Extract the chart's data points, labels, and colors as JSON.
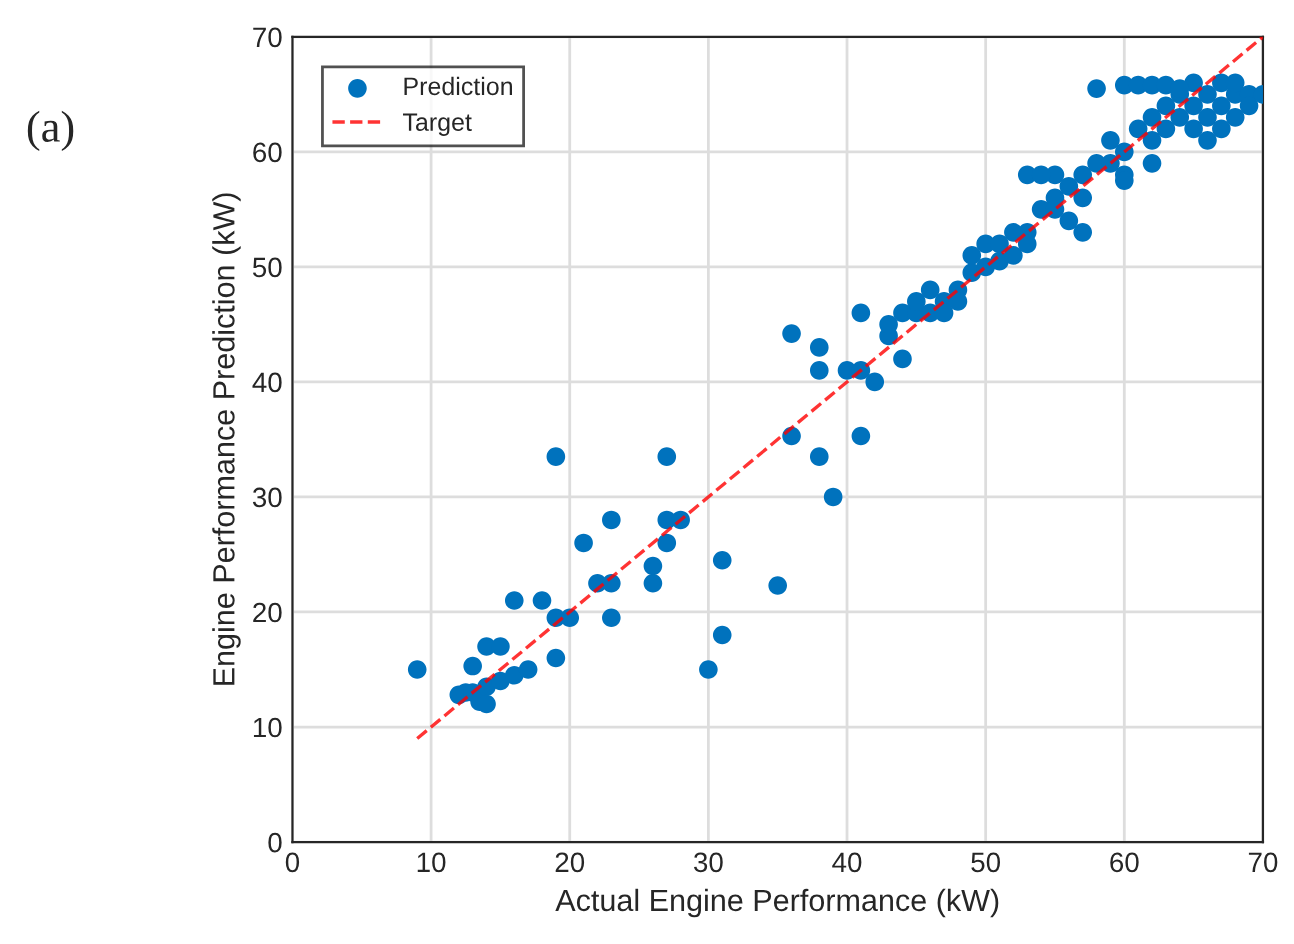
{
  "chart_data": {
    "type": "scatter",
    "xlabel": "Actual Engine Performance (kW)",
    "ylabel": "Engine Performance Prediction (kW)",
    "annotations": [
      "(a)"
    ],
    "xlim": [
      0,
      70
    ],
    "ylim": [
      0,
      70
    ],
    "xticks": [
      0,
      10,
      20,
      30,
      40,
      50,
      60,
      70
    ],
    "yticks": [
      0,
      10,
      20,
      30,
      40,
      50,
      60,
      70
    ],
    "grid": true,
    "legend": "top left",
    "series": [
      {
        "name": "Prediction",
        "marker": "circle",
        "color": "#0072bd",
        "x": [
          9,
          12,
          12.5,
          13,
          13,
          13.5,
          14,
          14,
          14,
          15,
          15,
          16,
          16,
          17,
          18,
          19,
          19,
          19,
          20,
          21,
          22,
          23,
          23,
          23,
          26,
          26,
          27,
          27,
          27,
          28,
          30,
          31,
          31,
          35,
          36,
          36,
          38,
          38,
          38,
          39,
          40,
          41,
          41,
          41,
          42,
          43,
          43,
          44,
          44,
          45,
          45,
          46,
          47,
          48,
          49,
          50,
          50,
          51,
          52,
          53,
          54,
          55,
          55,
          56,
          57,
          57,
          58,
          58,
          59,
          60,
          60,
          61,
          62,
          62,
          63,
          63,
          64,
          64,
          65,
          65,
          66,
          66,
          67,
          67,
          68,
          68,
          69,
          70,
          60,
          61,
          62,
          63,
          64,
          53,
          54,
          55,
          52,
          49,
          48,
          46,
          47,
          51,
          53,
          56,
          57,
          59,
          60,
          62,
          65,
          66,
          67,
          68,
          69
        ],
        "values": [
          15,
          12.8,
          13,
          15.3,
          13,
          12.2,
          13.5,
          12,
          17,
          17,
          14,
          21,
          14.5,
          15,
          21,
          16,
          33.5,
          19.5,
          19.5,
          26,
          22.5,
          28,
          22.5,
          19.5,
          24,
          22.5,
          33.5,
          28,
          26,
          28,
          15,
          18,
          24.5,
          22.3,
          44.2,
          35.3,
          43,
          41,
          33.5,
          30,
          41,
          41,
          35.3,
          46,
          40,
          44,
          45,
          42,
          46,
          46,
          47,
          46,
          47,
          48,
          49.5,
          50,
          52,
          50.5,
          51,
          53,
          55,
          58,
          56,
          57,
          56,
          58,
          59,
          65.5,
          59,
          60,
          58,
          62,
          61,
          63,
          64,
          62,
          63,
          65,
          64,
          66,
          63,
          65,
          64,
          62,
          65,
          63,
          65,
          65,
          65.8,
          65.8,
          65.8,
          65.8,
          65.5,
          58,
          58,
          55,
          53,
          51,
          47,
          48,
          46,
          52,
          52,
          54,
          53,
          61,
          57.5,
          59,
          62,
          61,
          66,
          66,
          64
        ]
      },
      {
        "name": "Target",
        "type": "line",
        "line_style": "dashed",
        "color": "#ff0000",
        "x": [
          9,
          70
        ],
        "values": [
          9,
          70
        ]
      }
    ]
  }
}
